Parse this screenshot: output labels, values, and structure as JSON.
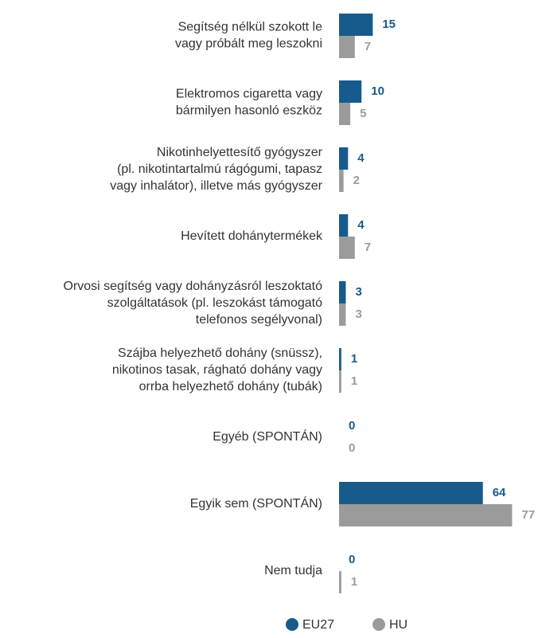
{
  "chart_data": {
    "type": "hbar",
    "categories": [
      [
        "Segítség nélkül szokott le",
        "vagy próbált meg leszokni"
      ],
      [
        "Elektromos cigaretta vagy",
        "bármilyen hasonló eszköz"
      ],
      [
        "Nikotinhelyettesítő gyógyszer",
        "(pl. nikotintartalmú rágógumi, tapasz",
        "vagy inhalátor), illetve más gyógyszer"
      ],
      [
        "Hevített dohánytermékek"
      ],
      [
        "Orvosi segítség vagy dohányzásról leszoktató",
        "szolgáltatások (pl. leszokást támogató",
        "telefonos segélyvonal)"
      ],
      [
        "Szájba helyezhető dohány (snüssz),",
        "nikotinos tasak, rágható dohány vagy",
        "orrba helyezhető dohány (tubák)"
      ],
      [
        "Egyéb (SPONTÁN)"
      ],
      [
        "Egyik sem (SPONTÁN)"
      ],
      [
        "Nem tudja"
      ]
    ],
    "series": [
      {
        "name": "EU27",
        "color": "#175b8c",
        "values": [
          15,
          10,
          4,
          4,
          3,
          1,
          0,
          64,
          0
        ]
      },
      {
        "name": "HU",
        "color": "#9b9b9b",
        "values": [
          7,
          5,
          2,
          7,
          3,
          1,
          0,
          77,
          1
        ]
      }
    ],
    "xlim": [
      0,
      85
    ]
  }
}
